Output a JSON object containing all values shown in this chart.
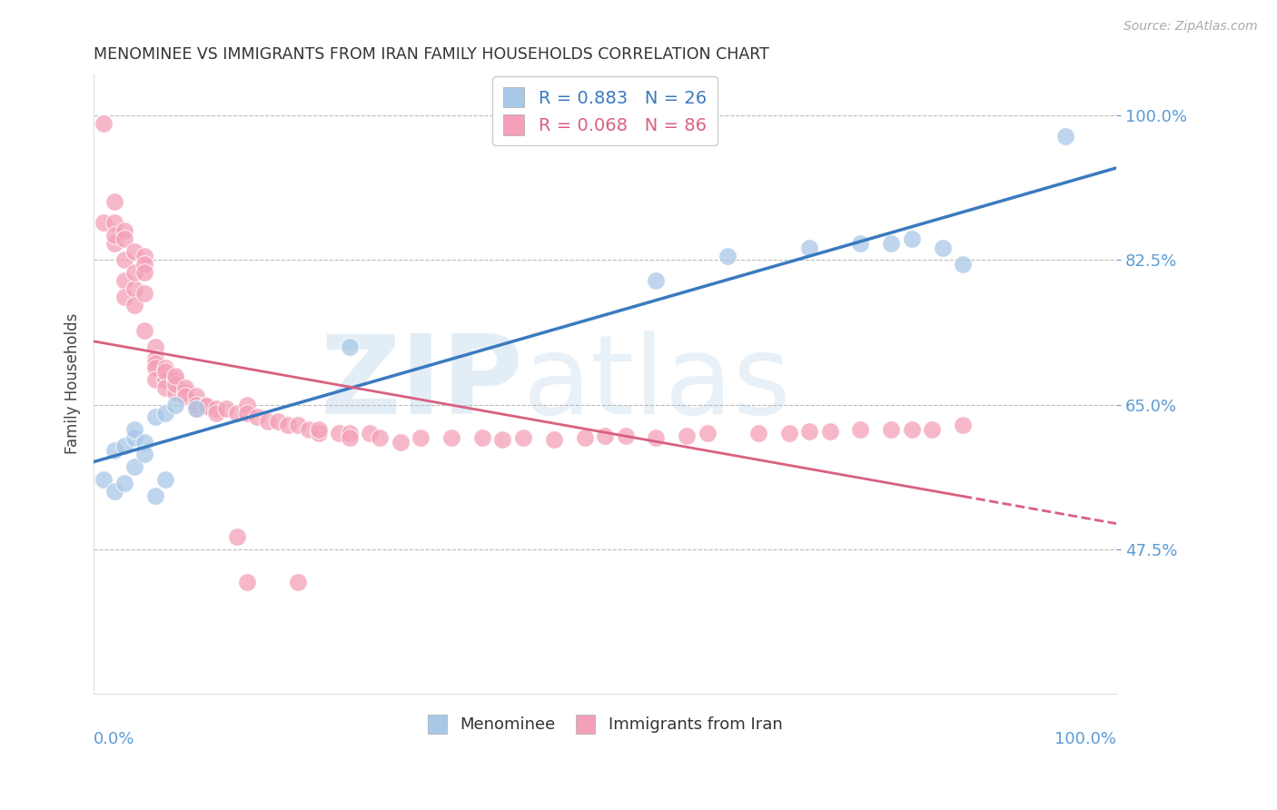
{
  "title": "MENOMINEE VS IMMIGRANTS FROM IRAN FAMILY HOUSEHOLDS CORRELATION CHART",
  "source": "Source: ZipAtlas.com",
  "ylabel": "Family Households",
  "watermark_zip": "ZIP",
  "watermark_atlas": "atlas",
  "xlim": [
    0.0,
    1.0
  ],
  "ylim": [
    0.3,
    1.05
  ],
  "yticks": [
    0.475,
    0.65,
    0.825,
    1.0
  ],
  "ytick_labels": [
    "47.5%",
    "65.0%",
    "82.5%",
    "100.0%"
  ],
  "legend_blue_r": "0.883",
  "legend_blue_n": "26",
  "legend_pink_r": "0.068",
  "legend_pink_n": "86",
  "blue_color": "#a8c8e8",
  "pink_color": "#f4a0b8",
  "blue_line_color": "#3a7abf",
  "pink_line_color": "#d96080",
  "axis_color": "#5b9bd5",
  "grid_color": "#bbbbbb",
  "menominee_x": [
    0.01,
    0.02,
    0.02,
    0.03,
    0.03,
    0.04,
    0.04,
    0.04,
    0.05,
    0.05,
    0.06,
    0.06,
    0.07,
    0.07,
    0.08,
    0.1,
    0.25,
    0.55,
    0.62,
    0.7,
    0.75,
    0.78,
    0.8,
    0.83,
    0.85,
    0.95
  ],
  "menominee_y": [
    0.56,
    0.595,
    0.545,
    0.6,
    0.555,
    0.61,
    0.62,
    0.575,
    0.605,
    0.59,
    0.635,
    0.54,
    0.64,
    0.56,
    0.65,
    0.645,
    0.72,
    0.8,
    0.83,
    0.84,
    0.845,
    0.845,
    0.85,
    0.84,
    0.82,
    0.975
  ],
  "iran_x": [
    0.01,
    0.01,
    0.02,
    0.02,
    0.02,
    0.02,
    0.03,
    0.03,
    0.03,
    0.03,
    0.03,
    0.04,
    0.04,
    0.04,
    0.04,
    0.05,
    0.05,
    0.05,
    0.05,
    0.05,
    0.06,
    0.06,
    0.06,
    0.06,
    0.06,
    0.07,
    0.07,
    0.07,
    0.07,
    0.08,
    0.08,
    0.08,
    0.08,
    0.09,
    0.09,
    0.09,
    0.1,
    0.1,
    0.1,
    0.1,
    0.11,
    0.11,
    0.12,
    0.12,
    0.13,
    0.14,
    0.15,
    0.15,
    0.16,
    0.17,
    0.18,
    0.19,
    0.2,
    0.21,
    0.22,
    0.24,
    0.25,
    0.27,
    0.14,
    0.15,
    0.2,
    0.22,
    0.25,
    0.28,
    0.3,
    0.32,
    0.35,
    0.38,
    0.4,
    0.42,
    0.45,
    0.48,
    0.5,
    0.52,
    0.55,
    0.58,
    0.6,
    0.65,
    0.68,
    0.7,
    0.72,
    0.75,
    0.78,
    0.8,
    0.82,
    0.85
  ],
  "iran_y": [
    0.99,
    0.87,
    0.895,
    0.845,
    0.87,
    0.855,
    0.86,
    0.85,
    0.825,
    0.8,
    0.78,
    0.79,
    0.77,
    0.81,
    0.835,
    0.83,
    0.82,
    0.81,
    0.785,
    0.74,
    0.72,
    0.705,
    0.7,
    0.695,
    0.68,
    0.695,
    0.68,
    0.69,
    0.67,
    0.68,
    0.665,
    0.675,
    0.685,
    0.665,
    0.67,
    0.66,
    0.65,
    0.645,
    0.66,
    0.65,
    0.65,
    0.648,
    0.645,
    0.64,
    0.645,
    0.64,
    0.65,
    0.64,
    0.635,
    0.63,
    0.63,
    0.625,
    0.625,
    0.62,
    0.615,
    0.615,
    0.615,
    0.615,
    0.49,
    0.435,
    0.435,
    0.62,
    0.61,
    0.61,
    0.605,
    0.61,
    0.61,
    0.61,
    0.608,
    0.61,
    0.608,
    0.61,
    0.612,
    0.612,
    0.61,
    0.612,
    0.615,
    0.615,
    0.615,
    0.618,
    0.618,
    0.62,
    0.62,
    0.62,
    0.62,
    0.625
  ]
}
